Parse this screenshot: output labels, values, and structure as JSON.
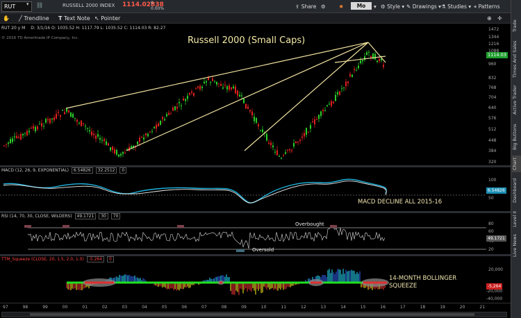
{
  "header": {
    "symbol": "RUT",
    "name": "RUSSELL 2000 INDEX",
    "price": "1114.02838",
    "change": "0",
    "change_pct": "0.00%",
    "actions": {
      "share": "Share",
      "mode": "Mo",
      "style": "Style",
      "drawings": "Drawings",
      "studies": "Studies",
      "patterns": "Patterns"
    }
  },
  "toolbar": {
    "trendline": "Trendline",
    "textnote": "Text Note",
    "pointer": "Pointer"
  },
  "side_tabs": [
    "Trade",
    "Times And Sales",
    "Active Trader",
    "Big Buttons",
    "Chart",
    "Dashboard",
    "Level II",
    "Live News"
  ],
  "price_panel": {
    "info": "RUT 20 y M",
    "ohlc": "D: 3/1/16   O: 1035.52   H: 1117.79   L: 1035.52   C: 1114.03   R: 82.27",
    "copyright": "© 2016 TD Ameritrade IP Company, Inc.",
    "title": "Russell 2000 (Small Caps)",
    "y_ticks": [
      "1472",
      "1344",
      "1216",
      "1088",
      "960",
      "832",
      "768",
      "704",
      "640",
      "576",
      "512",
      "448",
      "384",
      "320"
    ],
    "price_tag": "1114.03",
    "colors": {
      "up": "#2bcf2b",
      "down": "#e02020",
      "trend": "#f2e2a0"
    }
  },
  "macd_panel": {
    "header": "MACD (12, 26, 9, EXPONENTIAL)",
    "v1": "6.54826",
    "v2": "32.2512",
    "v3": "0",
    "y_ticks": [
      "100",
      "50"
    ],
    "tag": "6.54826",
    "annotation": "MACD DECLINE ALL 2015-16"
  },
  "rsi_panel": {
    "header": "RSI (14, 70, 30, CLOSE, WILDERS)",
    "v1": "49.1721",
    "v2": "30",
    "v3": "70",
    "y_ticks": [
      "80",
      "60",
      "40",
      "20"
    ],
    "tag": "49.1721",
    "overbought": "Overbought",
    "oversold": "Oversold"
  },
  "squeeze_panel": {
    "header": "TTM_Squeeze (CLOSE, 20, 1.5, 2.0, 1.0)",
    "v1": "-5.264",
    "v2": "0",
    "y_ticks": [
      "20,000",
      "-20,000",
      "-40,000"
    ],
    "tag": "-5,264",
    "annotation_line1": "14-MONTH BOLLINGER",
    "annotation_line2": "SQUEEZE"
  },
  "x_axis": [
    "97",
    "98",
    "99",
    "00",
    "01",
    "02",
    "03",
    "04",
    "05",
    "06",
    "07",
    "08",
    "09",
    "10",
    "11",
    "12",
    "13",
    "14",
    "15",
    "16",
    "17",
    "18",
    "19",
    "20",
    "21"
  ]
}
